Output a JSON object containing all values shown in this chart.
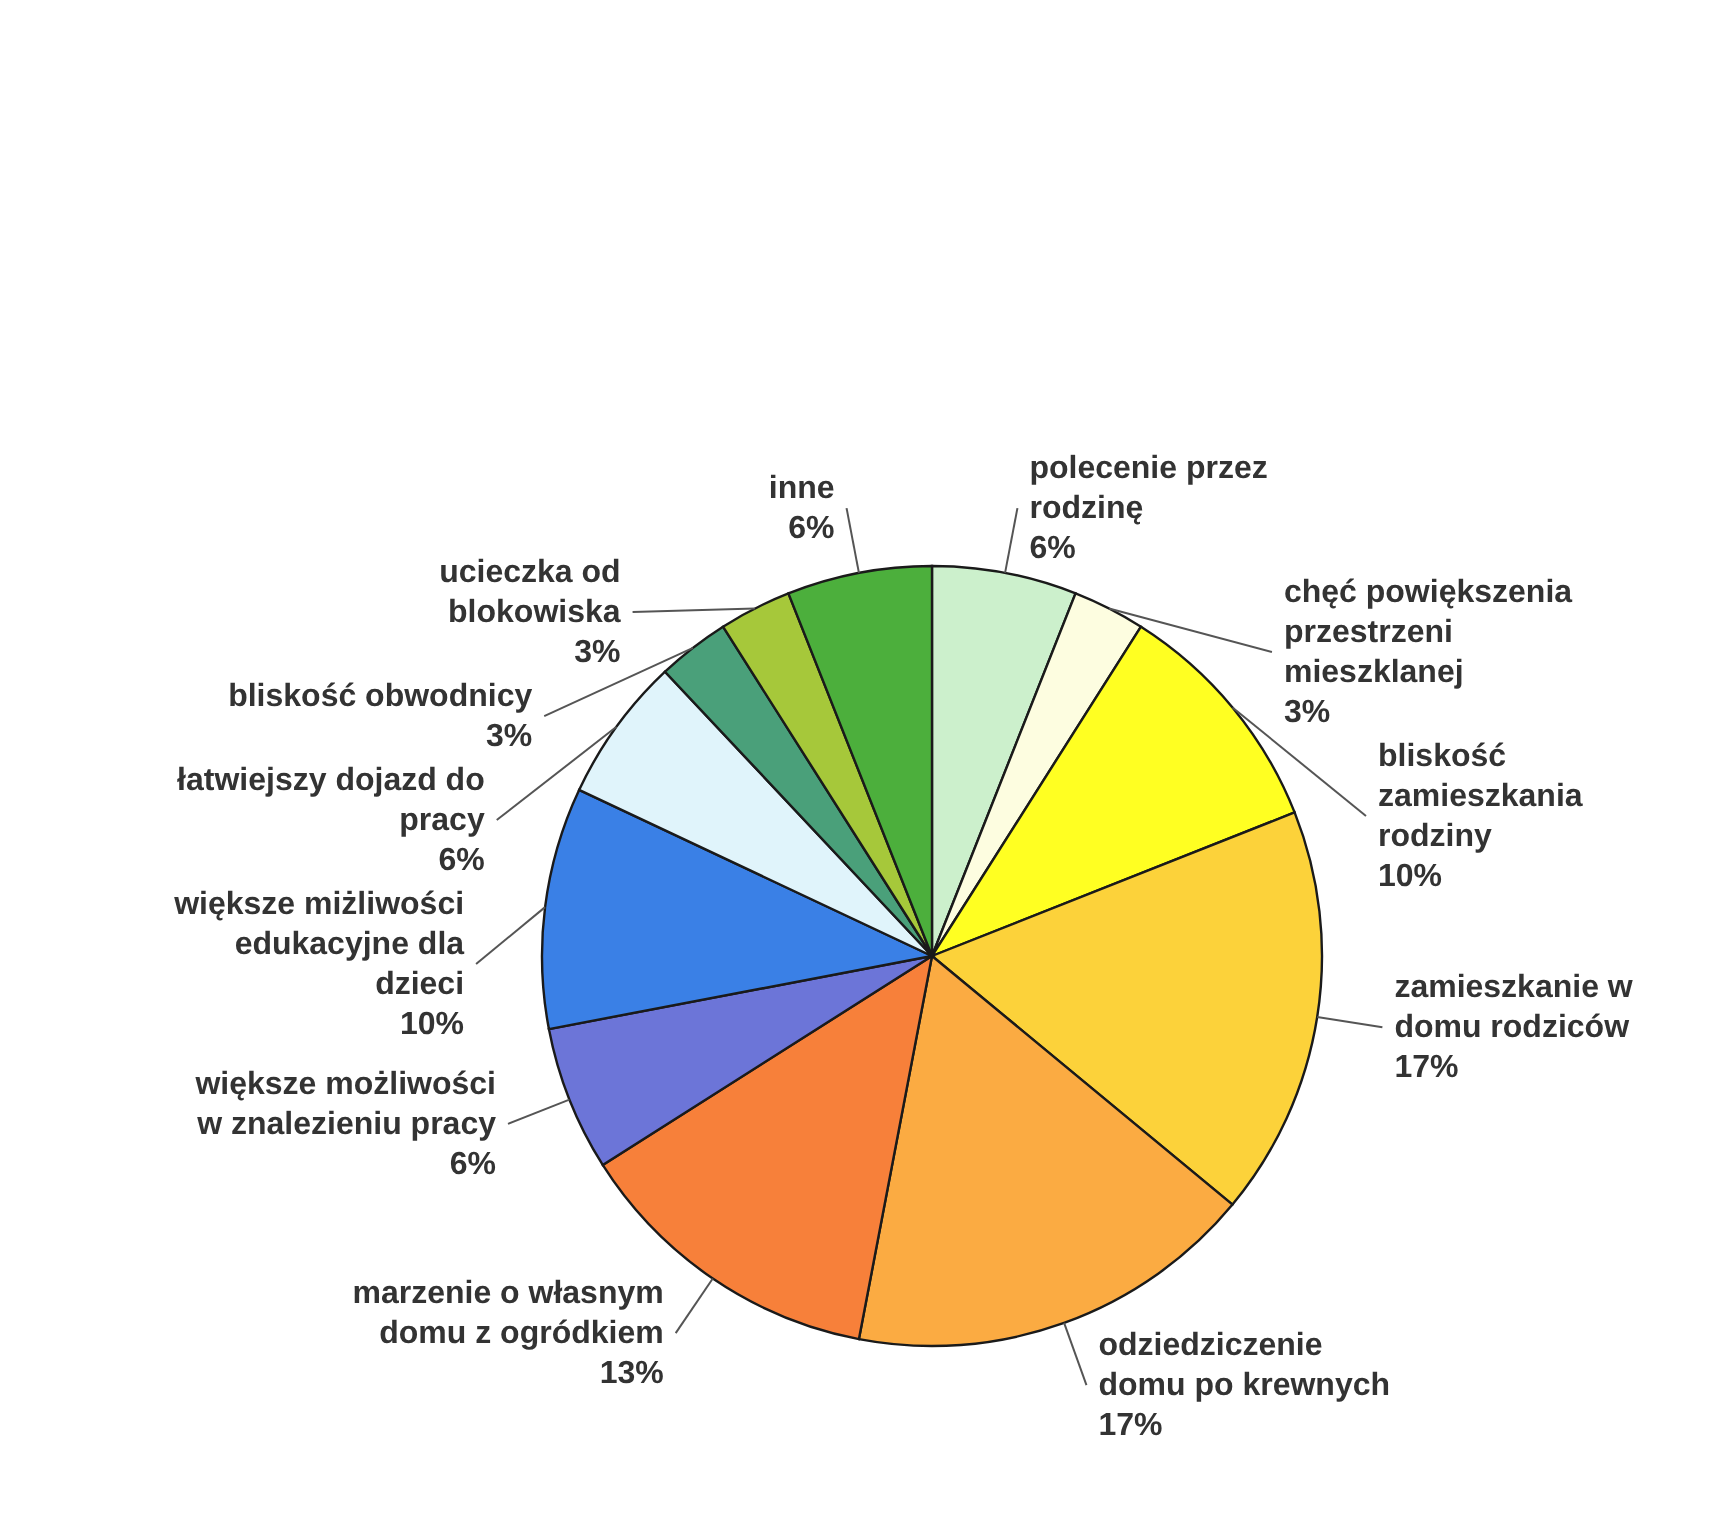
{
  "chart_data": {
    "type": "pie",
    "categories": [
      "polecenie przez\nrodzinę",
      "chęć powiększenia\nprzestrzeni\nmieszklanej",
      "bliskość\nzamieszkania\nrodziny",
      "zamieszkanie w\ndomu rodziców",
      "odziedziczenie\ndomu po krewnych",
      "marzenie o własnym\ndomu z ogródkiem",
      "większe możliwości\nw znalezieniu pracy",
      "większe miżliwości\nedukacyjne dla\ndzieci",
      "łatwiejszy dojazd do\npracy",
      "bliskość obwodnicy",
      "ucieczka od\nblokowiska",
      "inne"
    ],
    "values": [
      6,
      3,
      10,
      17,
      17,
      13,
      6,
      10,
      6,
      3,
      3,
      6
    ],
    "value_labels": [
      "6%",
      "3%",
      "10%",
      "17%",
      "17%",
      "13%",
      "6%",
      "10%",
      "6%",
      "3%",
      "3%",
      "6%"
    ],
    "colors": [
      "#ccf0cc",
      "#fdfde0",
      "#ffff22",
      "#fcd23a",
      "#fbab42",
      "#f7803a",
      "#6c75d8",
      "#3a80e6",
      "#e0f4fb",
      "#4aa07a",
      "#a6c83a",
      "#4caf3c"
    ]
  }
}
